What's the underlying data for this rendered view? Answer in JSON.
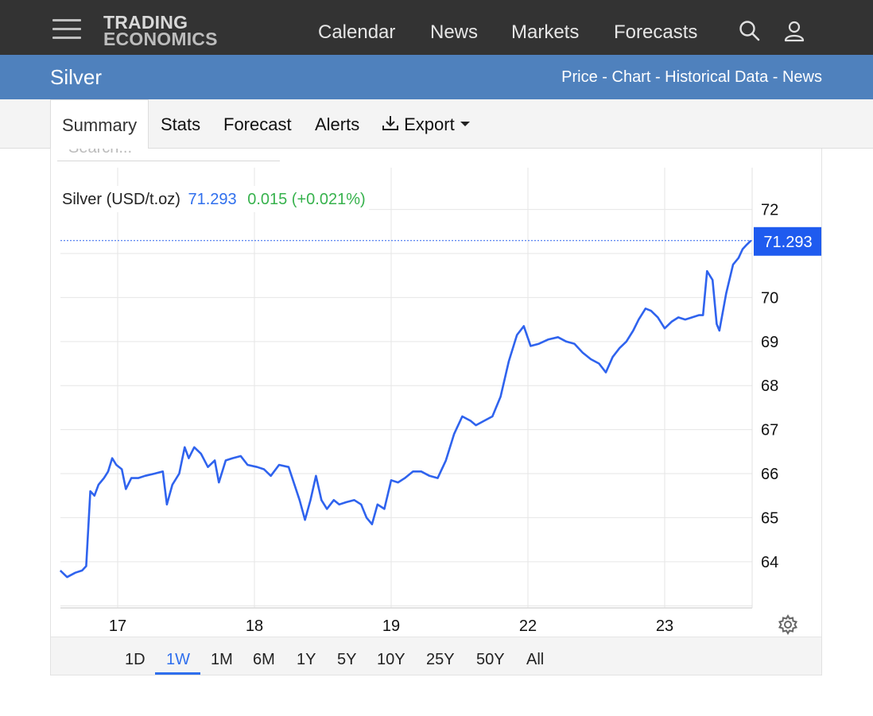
{
  "header": {
    "logo_line1": "TRADING",
    "logo_line2": "ECONOMICS",
    "nav": [
      "Calendar",
      "News",
      "Markets",
      "Forecasts"
    ],
    "icons": [
      "menu-icon",
      "search-icon",
      "user-icon"
    ]
  },
  "page": {
    "title": "Silver",
    "links": "Price - Chart - Historical Data - News"
  },
  "tabs": {
    "summary": "Summary",
    "stats": "Stats",
    "forecast": "Forecast",
    "alerts": "Alerts",
    "export": "Export"
  },
  "search": {
    "placeholder": "Search..."
  },
  "legend": {
    "name": "Silver (USD/t.oz)",
    "value": "71.293",
    "change": "0.015 (+0.021%)"
  },
  "price_tag": "71.293",
  "ranges": {
    "items": [
      "1D",
      "1W",
      "1M",
      "6M",
      "1Y",
      "5Y",
      "10Y",
      "25Y",
      "50Y",
      "All"
    ],
    "active": "1W"
  },
  "colors": {
    "line": "#2f63ee",
    "accent": "#4f81bd",
    "up": "#37b24d",
    "topbar": "#333333"
  },
  "chart_data": {
    "type": "line",
    "title": "",
    "xlabel": "",
    "ylabel": "",
    "x_ticks": [
      "17",
      "18",
      "19",
      "22",
      "23"
    ],
    "y_ticks": [
      64,
      65,
      66,
      67,
      68,
      69,
      70,
      72
    ],
    "ylim": [
      62.95,
      72.95
    ],
    "grid": true,
    "last_value": 71.293,
    "series": [
      {
        "name": "Silver (USD/t.oz)",
        "points": [
          [
            16.58,
            63.8
          ],
          [
            16.63,
            63.65
          ],
          [
            16.69,
            63.75
          ],
          [
            16.74,
            63.8
          ],
          [
            16.77,
            63.9
          ],
          [
            16.8,
            65.6
          ],
          [
            16.83,
            65.5
          ],
          [
            16.86,
            65.75
          ],
          [
            16.9,
            65.9
          ],
          [
            16.93,
            66.05
          ],
          [
            16.96,
            66.35
          ],
          [
            16.99,
            66.2
          ],
          [
            17.03,
            66.1
          ],
          [
            17.06,
            65.65
          ],
          [
            17.1,
            65.9
          ],
          [
            17.15,
            65.9
          ],
          [
            17.2,
            65.95
          ],
          [
            17.27,
            66.0
          ],
          [
            17.33,
            66.05
          ],
          [
            17.36,
            65.3
          ],
          [
            17.4,
            65.75
          ],
          [
            17.45,
            66.0
          ],
          [
            17.49,
            66.6
          ],
          [
            17.52,
            66.35
          ],
          [
            17.56,
            66.6
          ],
          [
            17.61,
            66.45
          ],
          [
            17.66,
            66.15
          ],
          [
            17.71,
            66.3
          ],
          [
            17.74,
            65.8
          ],
          [
            17.79,
            66.3
          ],
          [
            17.84,
            66.35
          ],
          [
            17.9,
            66.4
          ],
          [
            17.95,
            66.2
          ],
          [
            18.02,
            66.15
          ],
          [
            18.07,
            66.1
          ],
          [
            18.12,
            65.95
          ],
          [
            18.18,
            66.2
          ],
          [
            18.25,
            66.15
          ],
          [
            18.33,
            65.4
          ],
          [
            18.37,
            64.95
          ],
          [
            18.41,
            65.4
          ],
          [
            18.45,
            65.95
          ],
          [
            18.49,
            65.4
          ],
          [
            18.53,
            65.2
          ],
          [
            18.58,
            65.4
          ],
          [
            18.62,
            65.3
          ],
          [
            18.67,
            65.35
          ],
          [
            18.73,
            65.4
          ],
          [
            18.78,
            65.3
          ],
          [
            18.82,
            65.0
          ],
          [
            18.86,
            64.85
          ],
          [
            18.9,
            65.3
          ],
          [
            18.95,
            65.2
          ],
          [
            19.0,
            65.85
          ],
          [
            19.05,
            65.8
          ],
          [
            19.1,
            65.9
          ],
          [
            19.16,
            66.05
          ],
          [
            19.22,
            66.05
          ],
          [
            19.28,
            65.95
          ],
          [
            19.34,
            65.9
          ],
          [
            19.4,
            66.3
          ],
          [
            19.46,
            66.9
          ],
          [
            19.52,
            67.3
          ],
          [
            19.58,
            67.2
          ],
          [
            19.62,
            67.1
          ],
          [
            19.68,
            67.2
          ],
          [
            19.74,
            67.3
          ],
          [
            19.8,
            67.75
          ],
          [
            19.86,
            68.55
          ],
          [
            19.92,
            69.15
          ],
          [
            19.97,
            69.35
          ],
          [
            20.02,
            68.9
          ],
          [
            20.08,
            68.95
          ],
          [
            20.15,
            69.05
          ],
          [
            20.22,
            69.1
          ],
          [
            20.28,
            69.0
          ],
          [
            20.34,
            68.95
          ],
          [
            20.4,
            68.75
          ],
          [
            20.46,
            68.6
          ],
          [
            20.52,
            68.5
          ],
          [
            20.57,
            68.3
          ],
          [
            20.62,
            68.65
          ],
          [
            20.67,
            68.85
          ],
          [
            20.72,
            69.0
          ],
          [
            20.77,
            69.25
          ],
          [
            20.81,
            69.5
          ],
          [
            20.86,
            69.75
          ],
          [
            20.9,
            69.7
          ],
          [
            20.95,
            69.55
          ],
          [
            21.0,
            69.3
          ],
          [
            21.05,
            69.45
          ],
          [
            21.1,
            69.55
          ],
          [
            21.15,
            69.5
          ],
          [
            21.2,
            69.55
          ],
          [
            21.25,
            69.6
          ],
          [
            21.28,
            69.6
          ],
          [
            21.31,
            70.6
          ],
          [
            21.35,
            70.4
          ],
          [
            21.38,
            69.4
          ],
          [
            21.4,
            69.25
          ],
          [
            21.45,
            70.1
          ],
          [
            21.5,
            70.75
          ],
          [
            21.54,
            70.9
          ],
          [
            21.57,
            71.1
          ],
          [
            21.6,
            71.2
          ],
          [
            21.63,
            71.293
          ]
        ]
      }
    ]
  }
}
